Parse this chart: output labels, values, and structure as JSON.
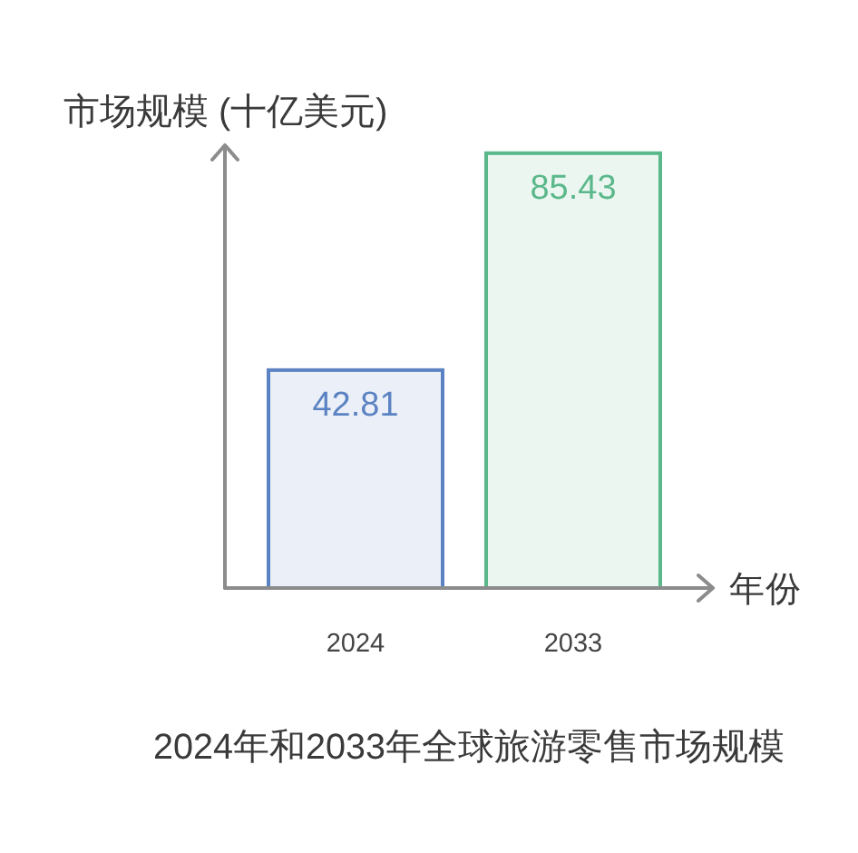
{
  "chart_data": {
    "type": "bar",
    "title": "2024年和2033年全球旅游零售市场规模",
    "xlabel": "年份",
    "ylabel": "市场规模 (十亿美元)",
    "categories": [
      "2024",
      "2033"
    ],
    "values": [
      42.81,
      85.43
    ],
    "colors": [
      "#5b82c2",
      "#5bb88b"
    ],
    "ylim": [
      0,
      87
    ],
    "data_labels": true,
    "tick_labels": "x"
  }
}
